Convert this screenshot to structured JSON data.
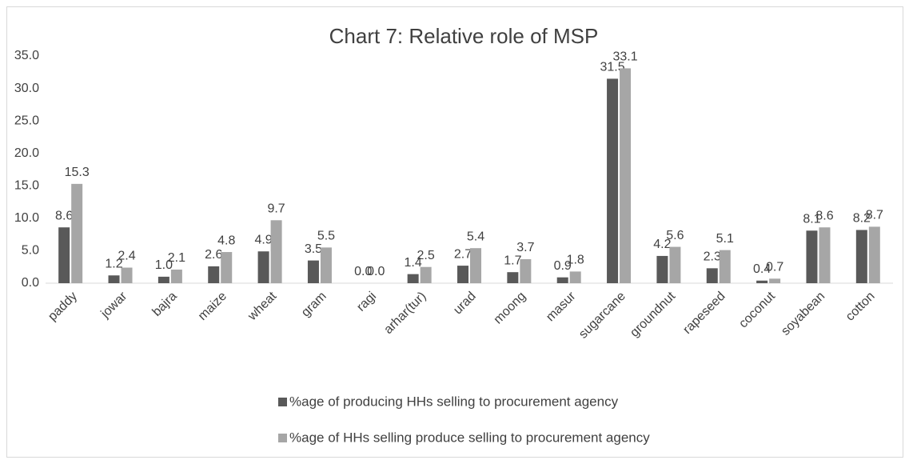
{
  "chart_data": {
    "type": "bar",
    "title": "Chart 7: Relative role of MSP",
    "categories": [
      "paddy",
      "jowar",
      "bajra",
      "maize",
      "wheat",
      "gram",
      "ragi",
      "arhar(tur)",
      "urad",
      "moong",
      "masur",
      "sugarcane",
      "groundnut",
      "rapeseed",
      "coconut",
      "soyabean",
      "cotton"
    ],
    "series": [
      {
        "name": "%age of producing HHs selling to procurement agency",
        "color": "#595959",
        "values": [
          8.6,
          1.2,
          1.0,
          2.6,
          4.9,
          3.5,
          0.0,
          1.4,
          2.7,
          1.7,
          0.9,
          31.5,
          4.2,
          2.3,
          0.4,
          8.1,
          8.2
        ],
        "value_labels": [
          "8.6",
          "1.2",
          "1.0",
          "2.6",
          "4.9",
          "3.5",
          "0.0",
          "1.4",
          "2.7",
          "1.7",
          "0.9",
          "31.5",
          "4.2",
          "2.3",
          "0.4",
          "8.1",
          "8.2"
        ]
      },
      {
        "name": "%age of HHs selling produce selling to procurement agency",
        "color": "#a6a6a6",
        "values": [
          15.3,
          2.4,
          2.1,
          4.8,
          9.7,
          5.5,
          0.0,
          2.5,
          5.4,
          3.7,
          1.8,
          33.1,
          5.6,
          5.1,
          0.7,
          8.6,
          8.7
        ],
        "value_labels": [
          "15.3",
          "2.4",
          "2.1",
          "4.8",
          "9.7",
          "5.5",
          "0.0",
          "2.5",
          "5.4",
          "3.7",
          "1.8",
          "33.1",
          "5.6",
          "5.1",
          "0.7",
          "8.6",
          "8.7"
        ]
      }
    ],
    "ylim": [
      0,
      35
    ],
    "yticks": [
      {
        "value": 0,
        "label": "0.0"
      },
      {
        "value": 5,
        "label": "5.0"
      },
      {
        "value": 10,
        "label": "10.0"
      },
      {
        "value": 15,
        "label": "15.0"
      },
      {
        "value": 20,
        "label": "20.0"
      },
      {
        "value": 25,
        "label": "25.0"
      },
      {
        "value": 30,
        "label": "30.0"
      },
      {
        "value": 35,
        "label": "35.0"
      }
    ],
    "grid": false,
    "legend": "bottom"
  }
}
